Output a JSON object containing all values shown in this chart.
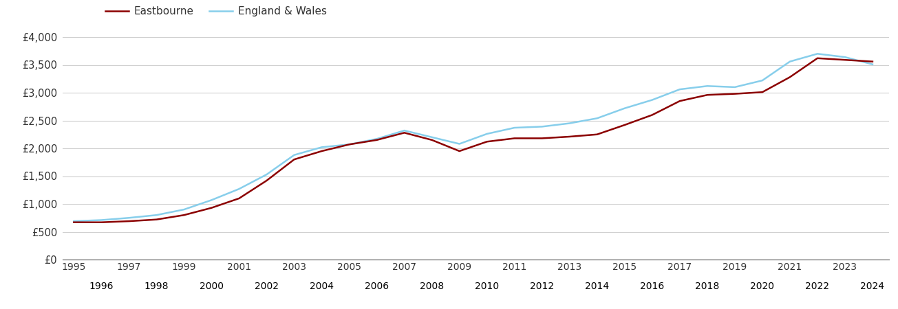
{
  "eastbourne_years": [
    1995,
    1996,
    1997,
    1998,
    1999,
    2000,
    2001,
    2002,
    2003,
    2004,
    2005,
    2006,
    2007,
    2008,
    2009,
    2010,
    2011,
    2012,
    2013,
    2014,
    2015,
    2016,
    2017,
    2018,
    2019,
    2020,
    2021,
    2022,
    2023,
    2024
  ],
  "eastbourne_values": [
    670,
    670,
    690,
    720,
    800,
    930,
    1100,
    1420,
    1800,
    1950,
    2070,
    2150,
    2280,
    2150,
    1950,
    2120,
    2180,
    2180,
    2210,
    2250,
    2420,
    2600,
    2850,
    2960,
    2980,
    3010,
    3280,
    3620,
    3590,
    3560
  ],
  "england_years": [
    1995,
    1996,
    1997,
    1998,
    1999,
    2000,
    2001,
    2002,
    2003,
    2004,
    2005,
    2006,
    2007,
    2008,
    2009,
    2010,
    2011,
    2012,
    2013,
    2014,
    2015,
    2016,
    2017,
    2018,
    2019,
    2020,
    2021,
    2022,
    2023,
    2024
  ],
  "england_values": [
    690,
    710,
    750,
    800,
    900,
    1070,
    1270,
    1530,
    1880,
    2020,
    2070,
    2170,
    2320,
    2200,
    2080,
    2260,
    2370,
    2390,
    2450,
    2540,
    2720,
    2870,
    3060,
    3120,
    3100,
    3220,
    3560,
    3700,
    3640,
    3510
  ],
  "eastbourne_color": "#8B0000",
  "england_color": "#87CEEB",
  "line_width": 1.8,
  "ylim": [
    0,
    4000
  ],
  "yticks": [
    0,
    500,
    1000,
    1500,
    2000,
    2500,
    3000,
    3500,
    4000
  ],
  "ytick_labels": [
    "£0",
    "£500",
    "£1,000",
    "£1,500",
    "£2,000",
    "£2,500",
    "£3,000",
    "£3,500",
    "£4,000"
  ],
  "xlim_min": 1994.6,
  "xlim_max": 2024.6,
  "odd_xticks": [
    1995,
    1997,
    1999,
    2001,
    2003,
    2005,
    2007,
    2009,
    2011,
    2013,
    2015,
    2017,
    2019,
    2021,
    2023
  ],
  "even_xticks": [
    1996,
    1998,
    2000,
    2002,
    2004,
    2006,
    2008,
    2010,
    2012,
    2014,
    2016,
    2018,
    2020,
    2022,
    2024
  ],
  "legend_eastbourne": "Eastbourne",
  "legend_england": "England & Wales",
  "background_color": "#ffffff",
  "grid_color": "#d0d0d0"
}
